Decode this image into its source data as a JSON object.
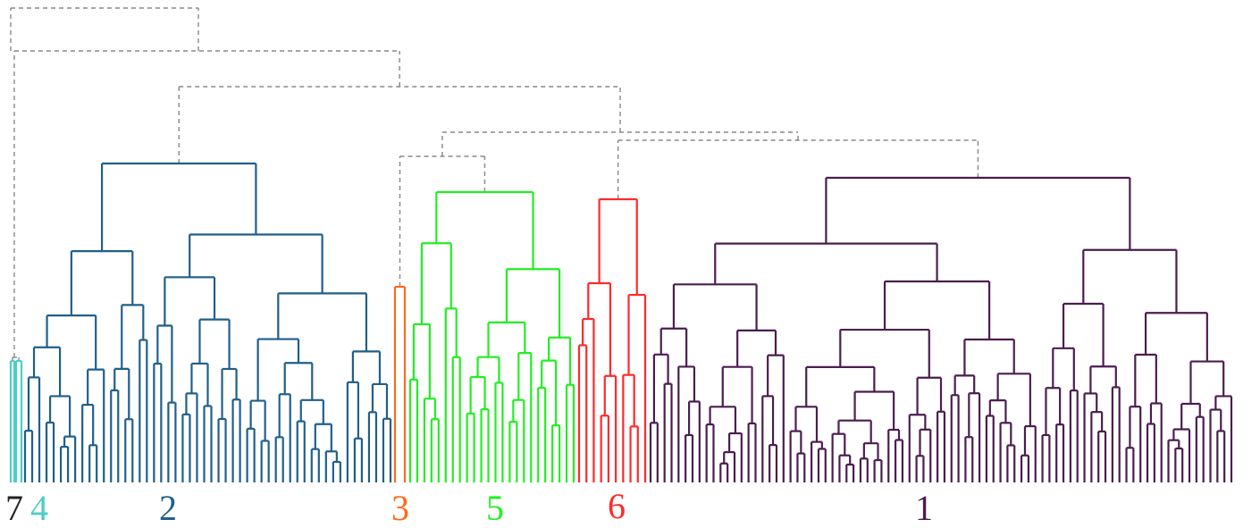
{
  "diagram": {
    "type": "dendrogram",
    "link_color": "#888888",
    "clusters": [
      {
        "id": "7",
        "label": "7",
        "color": "#222222",
        "leaves": 2
      },
      {
        "id": "4",
        "label": "4",
        "color": "#4ecdc4",
        "leaves": 2
      },
      {
        "id": "2",
        "label": "2",
        "color": "#1f5f8b",
        "leaves": 52
      },
      {
        "id": "3",
        "label": "3",
        "color": "#ff6a1a",
        "leaves": 2
      },
      {
        "id": "5",
        "label": "5",
        "color": "#22ee22",
        "leaves": 24
      },
      {
        "id": "6",
        "label": "6",
        "color": "#ff2a2a",
        "leaves": 10
      },
      {
        "id": "1",
        "label": "1",
        "color": "#4b1d4f",
        "leaves": 84
      }
    ]
  }
}
